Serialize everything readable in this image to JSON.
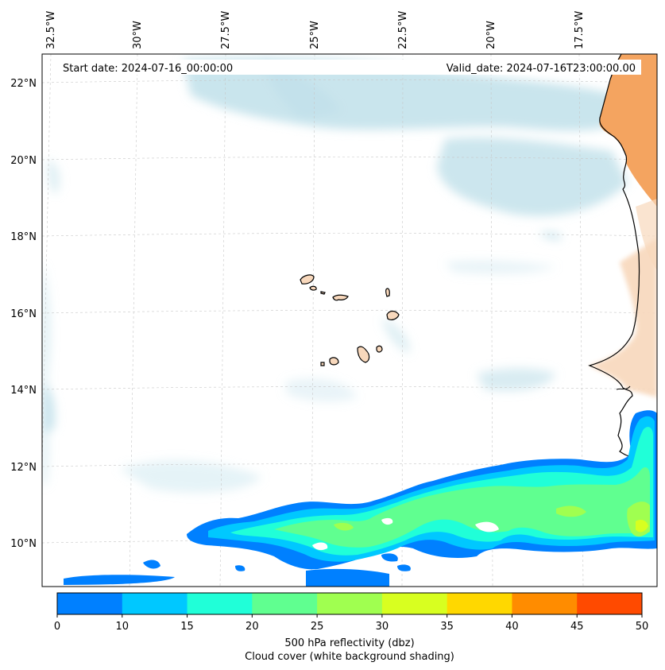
{
  "header": {
    "start_date": "Start date: 2024-07-16_00:00:00",
    "valid_date": "Valid_date: 2024-07-16T23:00:00.00"
  },
  "axes": {
    "lon_labels": [
      "32.5°W",
      "30°W",
      "27.5°W",
      "25°W",
      "22.5°W",
      "20°W",
      "17.5°W"
    ],
    "lat_labels": [
      "22°N",
      "20°N",
      "18°N",
      "16°N",
      "14°N",
      "12°N",
      "10°N"
    ]
  },
  "colorbar": {
    "ticks": [
      "0",
      "10",
      "15",
      "20",
      "25",
      "30",
      "35",
      "40",
      "45",
      "50"
    ],
    "colors": [
      "#0080ff",
      "#00c8ff",
      "#20ffd8",
      "#60ff90",
      "#a0ff50",
      "#d8ff20",
      "#ffd800",
      "#ff8c00",
      "#ff4a00"
    ],
    "label_line1": "500 hPa reflectivity (dbz)",
    "label_line2": "Cloud cover (white background shading)"
  },
  "colors": {
    "cloud": "#bfe0ea",
    "land_desert": "#f4a460",
    "land_light": "#f8d8bc",
    "coast": "#000000",
    "grid": "#c8c8c8"
  }
}
